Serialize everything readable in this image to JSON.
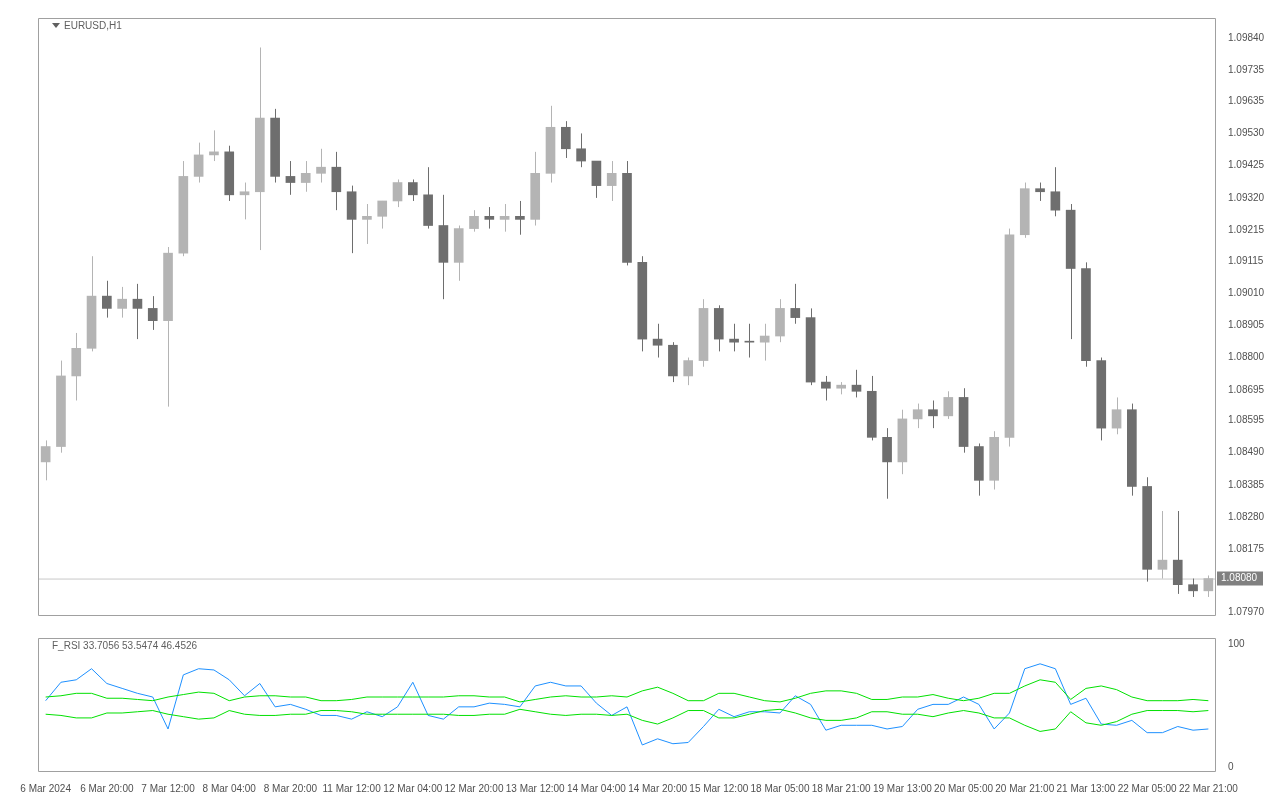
{
  "chart_data": [
    {
      "type": "candlestick",
      "title": "EURUSD,H1",
      "ohlc": [
        [
          1.0846,
          1.0853,
          1.084,
          1.0851
        ],
        [
          1.0851,
          1.0879,
          1.0849,
          1.0874
        ],
        [
          1.0874,
          1.0888,
          1.0866,
          1.0883
        ],
        [
          1.0883,
          1.0913,
          1.0882,
          1.09
        ],
        [
          1.09,
          1.0905,
          1.0893,
          1.0896
        ],
        [
          1.0896,
          1.0903,
          1.0893,
          1.0899
        ],
        [
          1.0899,
          1.0904,
          1.0886,
          1.0896
        ],
        [
          1.0896,
          1.09,
          1.0889,
          1.0892
        ],
        [
          1.0892,
          1.0916,
          1.0864,
          1.0914
        ],
        [
          1.0914,
          1.0944,
          1.0913,
          1.0939
        ],
        [
          1.0939,
          1.095,
          1.0937,
          1.0946
        ],
        [
          1.0946,
          1.0954,
          1.0944,
          1.0947
        ],
        [
          1.0947,
          1.0949,
          1.0931,
          1.0933
        ],
        [
          1.0933,
          1.0937,
          1.0925,
          1.0934
        ],
        [
          1.0934,
          1.0981,
          1.0915,
          1.0958
        ],
        [
          1.0958,
          1.0961,
          1.0937,
          1.0939
        ],
        [
          1.0939,
          1.0944,
          1.0933,
          1.0937
        ],
        [
          1.0937,
          1.0944,
          1.0934,
          1.094
        ],
        [
          1.094,
          1.0948,
          1.0937,
          1.0942
        ],
        [
          1.0942,
          1.0947,
          1.0928,
          1.0934
        ],
        [
          1.0934,
          1.0936,
          1.0914,
          1.0925
        ],
        [
          1.0925,
          1.093,
          1.0917,
          1.0926
        ],
        [
          1.0926,
          1.0931,
          1.0922,
          1.0931
        ],
        [
          1.0931,
          1.0938,
          1.0929,
          1.0937
        ],
        [
          1.0937,
          1.0938,
          1.0931,
          1.0933
        ],
        [
          1.0933,
          1.0942,
          1.0922,
          1.0923
        ],
        [
          1.0923,
          1.0933,
          1.0899,
          1.0911
        ],
        [
          1.0911,
          1.0923,
          1.0905,
          1.0922
        ],
        [
          1.0922,
          1.0928,
          1.0921,
          1.0926
        ],
        [
          1.0926,
          1.0929,
          1.0922,
          1.0925
        ],
        [
          1.0925,
          1.093,
          1.0921,
          1.0926
        ],
        [
          1.0926,
          1.0931,
          1.092,
          1.0925
        ],
        [
          1.0925,
          1.0947,
          1.0923,
          1.094
        ],
        [
          1.094,
          1.0962,
          1.0937,
          1.0955
        ],
        [
          1.0955,
          1.0957,
          1.0945,
          1.0948
        ],
        [
          1.0948,
          1.0953,
          1.0942,
          1.0944
        ],
        [
          1.0944,
          1.0944,
          1.0932,
          1.0936
        ],
        [
          1.0936,
          1.0944,
          1.0931,
          1.094
        ],
        [
          1.094,
          1.0944,
          1.091,
          1.0911
        ],
        [
          1.0911,
          1.0913,
          1.0882,
          1.0886
        ],
        [
          1.0886,
          1.0891,
          1.088,
          1.0884
        ],
        [
          1.0884,
          1.0885,
          1.0872,
          1.0874
        ],
        [
          1.0874,
          1.088,
          1.0871,
          1.0879
        ],
        [
          1.0879,
          1.0899,
          1.0877,
          1.0896
        ],
        [
          1.0896,
          1.0897,
          1.0882,
          1.0886
        ],
        [
          1.0886,
          1.0891,
          1.0882,
          1.0885
        ],
        [
          1.0885,
          1.0891,
          1.088,
          1.0885
        ],
        [
          1.0885,
          1.0891,
          1.0879,
          1.0887
        ],
        [
          1.0887,
          1.0899,
          1.0885,
          1.0896
        ],
        [
          1.0896,
          1.0904,
          1.0891,
          1.0893
        ],
        [
          1.0893,
          1.0896,
          1.0871,
          1.0872
        ],
        [
          1.0872,
          1.0874,
          1.0866,
          1.087
        ],
        [
          1.087,
          1.0872,
          1.0868,
          1.0871
        ],
        [
          1.0871,
          1.0876,
          1.0867,
          1.0869
        ],
        [
          1.0869,
          1.0874,
          1.0853,
          1.0854
        ],
        [
          1.0854,
          1.0857,
          1.0834,
          1.0846
        ],
        [
          1.0846,
          1.0863,
          1.0842,
          1.086
        ],
        [
          1.086,
          1.0865,
          1.0857,
          1.0863
        ],
        [
          1.0863,
          1.0866,
          1.0857,
          1.0861
        ],
        [
          1.0861,
          1.0869,
          1.086,
          1.0867
        ],
        [
          1.0867,
          1.087,
          1.0849,
          1.0851
        ],
        [
          1.0851,
          1.0852,
          1.0835,
          1.084
        ],
        [
          1.084,
          1.0856,
          1.0837,
          1.0854
        ],
        [
          1.0854,
          1.0922,
          1.0851,
          1.092
        ],
        [
          1.092,
          1.0937,
          1.0919,
          1.0935
        ],
        [
          1.0935,
          1.0937,
          1.0931,
          1.0934
        ],
        [
          1.0934,
          1.0942,
          1.0926,
          1.0928
        ],
        [
          1.0928,
          1.093,
          1.0886,
          1.0909
        ],
        [
          1.0909,
          1.0911,
          1.0877,
          1.0879
        ],
        [
          1.0879,
          1.088,
          1.0853,
          1.0857
        ],
        [
          1.0857,
          1.0867,
          1.0855,
          1.0863
        ],
        [
          1.0863,
          1.0865,
          1.0835,
          1.0838
        ],
        [
          1.0838,
          1.0841,
          1.0807,
          1.0811
        ],
        [
          1.0811,
          1.083,
          1.0808,
          1.0814
        ],
        [
          1.0814,
          1.083,
          1.0803,
          1.0806
        ],
        [
          1.0806,
          1.0808,
          1.0802,
          1.0804
        ],
        [
          1.0804,
          1.0809,
          1.0802,
          1.0808
        ]
      ],
      "colors": [
        "#b4b4b4",
        "#b4b4b4",
        "#b4b4b4",
        "#b4b4b4",
        "#6e6e6e",
        "#b4b4b4",
        "#6e6e6e",
        "#6e6e6e",
        "#b4b4b4",
        "#b4b4b4",
        "#b4b4b4",
        "#b4b4b4",
        "#6e6e6e",
        "#b4b4b4",
        "#b4b4b4",
        "#6e6e6e",
        "#6e6e6e",
        "#b4b4b4",
        "#b4b4b4",
        "#6e6e6e",
        "#6e6e6e",
        "#b4b4b4",
        "#b4b4b4",
        "#b4b4b4",
        "#6e6e6e",
        "#6e6e6e",
        "#6e6e6e",
        "#b4b4b4",
        "#b4b4b4",
        "#6e6e6e",
        "#b4b4b4",
        "#6e6e6e",
        "#b4b4b4",
        "#b4b4b4",
        "#6e6e6e",
        "#6e6e6e",
        "#6e6e6e",
        "#b4b4b4",
        "#6e6e6e",
        "#6e6e6e",
        "#6e6e6e",
        "#6e6e6e",
        "#b4b4b4",
        "#b4b4b4",
        "#6e6e6e",
        "#6e6e6e",
        "#6e6e6e",
        "#b4b4b4",
        "#b4b4b4",
        "#6e6e6e",
        "#6e6e6e",
        "#6e6e6e",
        "#b4b4b4",
        "#6e6e6e",
        "#6e6e6e",
        "#6e6e6e",
        "#b4b4b4",
        "#b4b4b4",
        "#6e6e6e",
        "#b4b4b4",
        "#6e6e6e",
        "#6e6e6e",
        "#b4b4b4",
        "#b4b4b4",
        "#b4b4b4",
        "#6e6e6e",
        "#6e6e6e",
        "#6e6e6e",
        "#6e6e6e",
        "#6e6e6e",
        "#b4b4b4",
        "#6e6e6e",
        "#6e6e6e",
        "#b4b4b4",
        "#6e6e6e",
        "#6e6e6e",
        "#b4b4b4"
      ],
      "ylim": [
        1.07958,
        1.09906
      ],
      "yticks": [
        {
          "value": 1.0984,
          "label": "1.09840"
        },
        {
          "value": 1.09735,
          "label": "1.09735"
        },
        {
          "value": 1.09635,
          "label": "1.09635"
        },
        {
          "value": 1.0953,
          "label": "1.09530"
        },
        {
          "value": 1.09425,
          "label": "1.09425"
        },
        {
          "value": 1.0932,
          "label": "1.09320"
        },
        {
          "value": 1.09215,
          "label": "1.09215"
        },
        {
          "value": 1.09115,
          "label": "1.09115"
        },
        {
          "value": 1.0901,
          "label": "1.09010"
        },
        {
          "value": 1.08905,
          "label": "1.08905"
        },
        {
          "value": 1.088,
          "label": "1.08800"
        },
        {
          "value": 1.08695,
          "label": "1.08695"
        },
        {
          "value": 1.08595,
          "label": "1.08595"
        },
        {
          "value": 1.0849,
          "label": "1.08490"
        },
        {
          "value": 1.08385,
          "label": "1.08385"
        },
        {
          "value": 1.0828,
          "label": "1.08280"
        },
        {
          "value": 1.08175,
          "label": "1.08175"
        },
        {
          "value": 1.0797,
          "label": "1.07970"
        }
      ],
      "ref_lines": [
        {
          "axis": "y",
          "value": 1.0808,
          "label": "1.08080",
          "color": "#c8c8c8"
        }
      ],
      "tick_labels": "y"
    },
    {
      "type": "line",
      "title": "F_RSI 33.7056 53.5474 46.4526",
      "categories": [
        "6 Mar 2024",
        null,
        null,
        null,
        "6 Mar 20:00",
        null,
        null,
        null,
        "7 Mar 12:00",
        null,
        null,
        null,
        "8 Mar 04:00",
        null,
        null,
        null,
        "8 Mar 20:00",
        null,
        null,
        null,
        "11 Mar 12:00",
        null,
        null,
        null,
        "12 Mar 04:00",
        null,
        null,
        null,
        "12 Mar 20:00",
        null,
        null,
        null,
        "13 Mar 12:00",
        null,
        null,
        null,
        "14 Mar 04:00",
        null,
        null,
        null,
        "14 Mar 20:00",
        null,
        null,
        null,
        "15 Mar 12:00",
        null,
        null,
        null,
        "18 Mar 05:00",
        null,
        null,
        null,
        "18 Mar 21:00",
        null,
        null,
        null,
        "19 Mar 13:00",
        null,
        null,
        null,
        "20 Mar 05:00",
        null,
        null,
        null,
        "20 Mar 21:00",
        null,
        null,
        null,
        "21 Mar 13:00",
        null,
        null,
        null,
        "22 Mar 05:00",
        null,
        null,
        null,
        "22 Mar 21:00"
      ],
      "series": [
        {
          "color": "#00e000",
          "values": [
            57,
            58,
            60,
            60,
            56,
            56,
            55,
            54,
            57,
            59,
            61,
            60,
            54,
            57,
            58,
            58,
            57,
            57,
            54,
            54,
            55,
            57,
            57,
            57,
            57,
            57,
            57,
            58,
            58,
            57,
            57,
            53,
            55,
            57,
            58,
            57,
            57,
            58,
            57,
            62,
            65,
            60,
            54,
            54,
            60,
            60,
            57,
            54,
            53,
            56,
            60,
            62,
            62,
            60,
            55,
            55,
            57,
            57,
            59,
            56,
            54,
            56,
            60,
            60,
            66,
            71,
            69,
            55,
            64,
            66,
            63,
            57,
            54,
            54,
            54,
            55,
            54
          ]
        },
        {
          "color": "#00e000",
          "values": [
            43,
            42,
            40,
            40,
            44,
            44,
            45,
            46,
            43,
            41,
            39,
            40,
            46,
            43,
            42,
            42,
            43,
            43,
            46,
            46,
            45,
            43,
            43,
            43,
            43,
            43,
            43,
            42,
            42,
            43,
            43,
            47,
            45,
            43,
            42,
            43,
            43,
            42,
            43,
            38,
            35,
            40,
            46,
            46,
            40,
            40,
            43,
            46,
            47,
            44,
            40,
            38,
            38,
            40,
            45,
            45,
            43,
            43,
            41,
            44,
            46,
            44,
            40,
            40,
            34,
            29,
            31,
            45,
            36,
            34,
            37,
            43,
            46,
            46,
            46,
            45,
            46
          ]
        },
        {
          "color": "#1e90ff",
          "values": [
            54,
            69,
            71,
            80,
            68,
            64,
            60,
            57,
            31,
            75,
            80,
            79,
            71,
            58,
            68,
            49,
            51,
            47,
            42,
            42,
            39,
            45,
            41,
            49,
            69,
            42,
            39,
            49,
            49,
            52,
            51,
            49,
            66,
            69,
            66,
            66,
            52,
            42,
            49,
            18,
            23,
            19,
            20,
            33,
            47,
            41,
            45,
            45,
            44,
            58,
            51,
            30,
            34,
            34,
            34,
            31,
            33,
            47,
            51,
            51,
            57,
            51,
            31,
            44,
            80,
            84,
            80,
            51,
            56,
            35,
            34,
            38,
            28,
            28,
            33,
            30,
            31
          ]
        }
      ],
      "ylim": [
        -4,
        105
      ],
      "yticks": [
        0,
        100
      ]
    }
  ]
}
